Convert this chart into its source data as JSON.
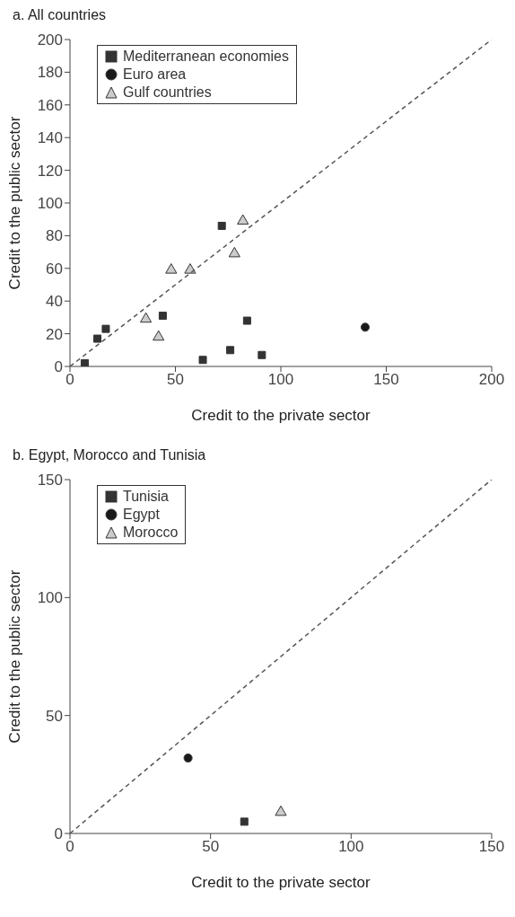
{
  "chart_data": [
    {
      "type": "scatter",
      "title": "a. All countries",
      "xlabel": "Credit to the private sector",
      "ylabel": "Credit to the public sector",
      "xlim": [
        0,
        200
      ],
      "xticks": [
        0,
        50,
        100,
        150,
        200
      ],
      "ylim": [
        0,
        200
      ],
      "yticks": [
        0,
        20,
        40,
        60,
        80,
        100,
        120,
        140,
        160,
        180,
        200
      ],
      "legend": "top left",
      "grid": false,
      "series": [
        {
          "name": "Mediterranean economies",
          "color": "#333333",
          "marker": "square",
          "x": [
            7,
            13,
            17,
            44,
            72,
            84,
            63,
            76,
            91
          ],
          "values": [
            2,
            17,
            23,
            31,
            86,
            28,
            4,
            10,
            7
          ]
        },
        {
          "name": "Euro area",
          "color": "#1a1a1a",
          "marker": "circle",
          "x": [
            140
          ],
          "values": [
            24
          ]
        },
        {
          "name": "Gulf countries",
          "color": "#cccccc",
          "marker": "triangle",
          "x": [
            36,
            42,
            48,
            57,
            78,
            82
          ],
          "values": [
            29,
            18,
            59,
            59,
            69,
            89
          ]
        },
        {
          "type": "line",
          "color": "#555555",
          "line_style": "dashed",
          "marker": "none",
          "x": [
            0,
            200
          ],
          "values": [
            0,
            200
          ]
        }
      ]
    },
    {
      "type": "scatter",
      "title": "b. Egypt, Morocco and Tunisia",
      "xlabel": "Credit to the private sector",
      "ylabel": "Credit to the public sector",
      "xlim": [
        0,
        150
      ],
      "xticks": [
        0,
        50,
        100,
        150
      ],
      "ylim": [
        0,
        150
      ],
      "yticks": [
        0,
        50,
        100,
        150
      ],
      "legend": "top left",
      "grid": false,
      "series": [
        {
          "name": "Tunisia",
          "color": "#333333",
          "marker": "square",
          "x": [
            62
          ],
          "values": [
            5
          ]
        },
        {
          "name": "Egypt",
          "color": "#1a1a1a",
          "marker": "circle",
          "x": [
            42
          ],
          "values": [
            32
          ]
        },
        {
          "name": "Morocco",
          "color": "#cccccc",
          "marker": "triangle",
          "x": [
            75
          ],
          "values": [
            9
          ]
        },
        {
          "type": "line",
          "color": "#555555",
          "line_style": "dashed",
          "marker": "none",
          "x": [
            0,
            150
          ],
          "values": [
            0,
            150
          ]
        }
      ]
    }
  ]
}
